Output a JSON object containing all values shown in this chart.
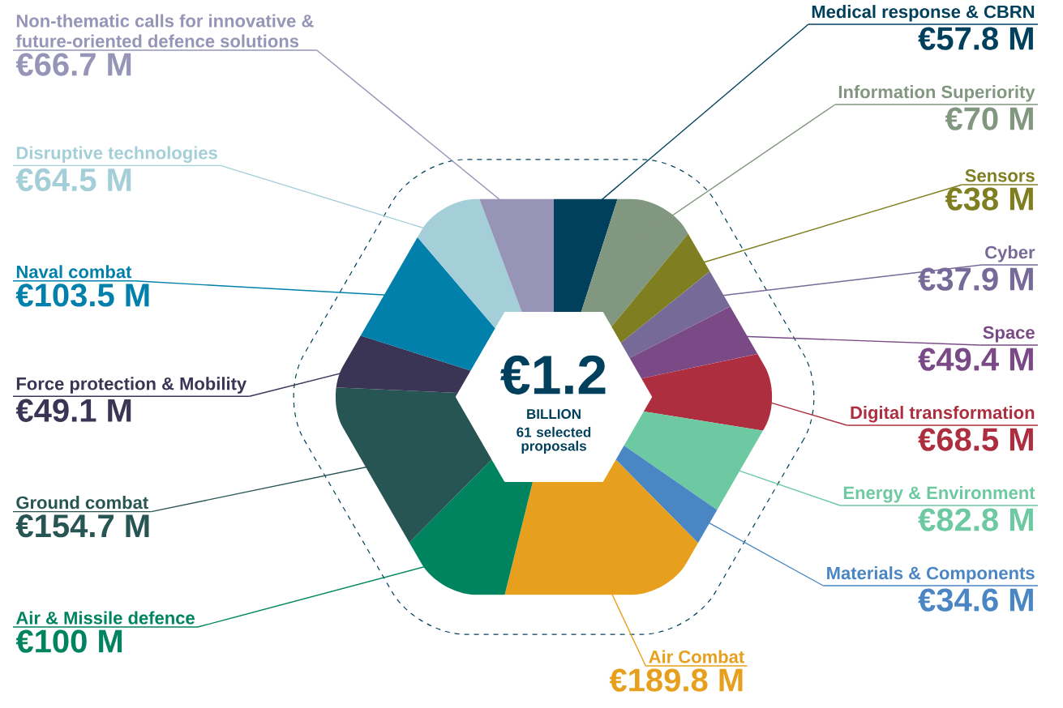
{
  "chart_data": {
    "type": "donut",
    "categories": [
      "Medical response & CBRN",
      "Information Superiority",
      "Sensors",
      "Cyber",
      "Space",
      "Digital transformation",
      "Energy & Environment",
      "Materials & Components",
      "Air Combat",
      "Air & Missile defence",
      "Ground combat",
      "Force protection & Mobility",
      "Naval combat",
      "Disruptive technologies",
      "Non-thematic calls for innovative & future-oriented defence solutions"
    ],
    "values": [
      57.8,
      70,
      38,
      37.9,
      49.4,
      68.5,
      82.8,
      34.6,
      189.8,
      100,
      154.7,
      49.1,
      103.5,
      64.5,
      66.7
    ],
    "value_labels": [
      "€57.8 M",
      "€70 M",
      "€38 M",
      "€37.9 M",
      "€49.4 M",
      "€68.5 M",
      "€82.8 M",
      "€34.6 M",
      "€189.8 M",
      "€100 M",
      "€154.7 M",
      "€49.1 M",
      "€103.5 M",
      "€64.5 M",
      "€66.7 M"
    ],
    "colors": [
      "#00405c",
      "#82977f",
      "#7f7f22",
      "#766a98",
      "#7a4a87",
      "#ad2f3f",
      "#6cc9a1",
      "#4a86c4",
      "#e6a01e",
      "#00845f",
      "#275553",
      "#3a3555",
      "#0080ab",
      "#a4cfd8",
      "#9695b7"
    ],
    "annotations": [
      "€1.2",
      "BILLION",
      "61 selected proposals"
    ]
  }
}
